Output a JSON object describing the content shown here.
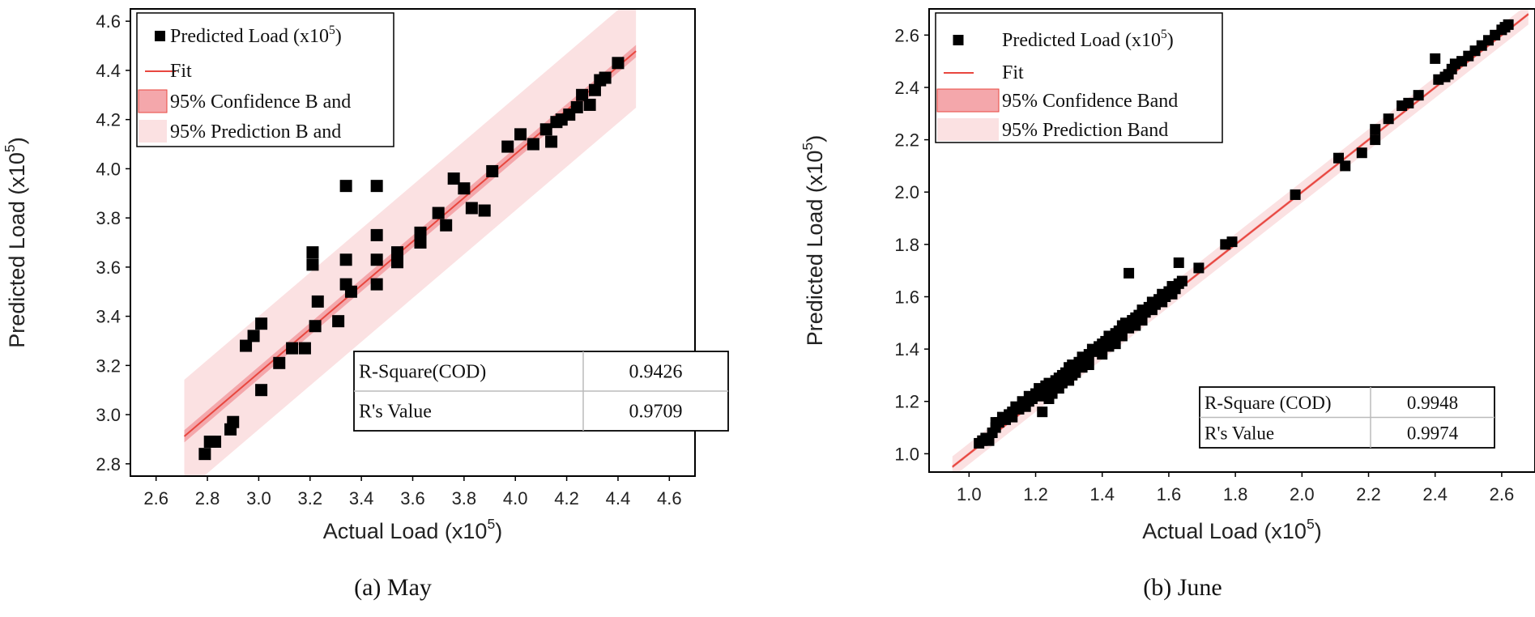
{
  "chart_data": [
    {
      "type": "scatter",
      "caption": "(a) May",
      "xlabel": "Actual Load (x10",
      "ylabel": "Predicted Load (x10",
      "label_exponent": "5",
      "label_close": ")",
      "xlim": [
        2.5,
        4.7
      ],
      "ylim": [
        2.75,
        4.65
      ],
      "xticks": [
        "2.6",
        "2.8",
        "3.0",
        "3.2",
        "3.4",
        "3.6",
        "3.8",
        "4.0",
        "4.2",
        "4.4",
        "4.6"
      ],
      "yticks": [
        "2.8",
        "3.0",
        "3.2",
        "3.4",
        "3.6",
        "3.8",
        "4.0",
        "4.2",
        "4.4",
        "4.6"
      ],
      "fit": {
        "slope": 0.89,
        "intercept": 0.5,
        "x_range": [
          2.71,
          4.47
        ],
        "conf_halfwidth": 0.025,
        "pred_halfwidth": 0.23
      },
      "legend": {
        "scatter": "Predicted Load (x10",
        "scatter_exp": "5",
        "scatter_close": ")",
        "fit": "Fit",
        "confidence": "95% Confidence B and",
        "prediction": "95% Prediction B and"
      },
      "stats": [
        {
          "label": "R-Square(COD)",
          "value": "0.9426"
        },
        {
          "label": "R's Value",
          "value": "0.9709"
        }
      ],
      "points": [
        [
          2.79,
          2.84
        ],
        [
          2.81,
          2.89
        ],
        [
          2.83,
          2.89
        ],
        [
          2.89,
          2.94
        ],
        [
          2.9,
          2.97
        ],
        [
          2.95,
          3.28
        ],
        [
          2.98,
          3.32
        ],
        [
          3.01,
          3.37
        ],
        [
          3.01,
          3.1
        ],
        [
          3.08,
          3.21
        ],
        [
          3.13,
          3.27
        ],
        [
          3.18,
          3.27
        ],
        [
          3.21,
          3.66
        ],
        [
          3.21,
          3.61
        ],
        [
          3.22,
          3.36
        ],
        [
          3.23,
          3.46
        ],
        [
          3.31,
          3.38
        ],
        [
          3.34,
          3.93
        ],
        [
          3.34,
          3.63
        ],
        [
          3.34,
          3.53
        ],
        [
          3.36,
          3.5
        ],
        [
          3.46,
          3.93
        ],
        [
          3.46,
          3.73
        ],
        [
          3.46,
          3.63
        ],
        [
          3.46,
          3.53
        ],
        [
          3.54,
          3.62
        ],
        [
          3.54,
          3.66
        ],
        [
          3.63,
          3.7
        ],
        [
          3.63,
          3.74
        ],
        [
          3.7,
          3.82
        ],
        [
          3.73,
          3.77
        ],
        [
          3.76,
          3.96
        ],
        [
          3.8,
          3.92
        ],
        [
          3.83,
          3.84
        ],
        [
          3.88,
          3.83
        ],
        [
          3.91,
          3.99
        ],
        [
          3.97,
          4.09
        ],
        [
          4.02,
          4.14
        ],
        [
          4.07,
          4.1
        ],
        [
          4.12,
          4.16
        ],
        [
          4.14,
          4.11
        ],
        [
          4.16,
          4.19
        ],
        [
          4.18,
          4.2
        ],
        [
          4.21,
          4.22
        ],
        [
          4.24,
          4.25
        ],
        [
          4.26,
          4.3
        ],
        [
          4.29,
          4.26
        ],
        [
          4.31,
          4.32
        ],
        [
          4.33,
          4.36
        ],
        [
          4.35,
          4.37
        ],
        [
          4.4,
          4.43
        ]
      ]
    },
    {
      "type": "scatter",
      "caption": "(b) June",
      "xlabel": "Actual Load (x10",
      "ylabel": "Predicted Load (x10",
      "label_exponent": "5",
      "label_close": ")",
      "xlim": [
        0.88,
        2.7
      ],
      "ylim": [
        0.93,
        2.7
      ],
      "xticks": [
        "1.0",
        "1.2",
        "1.4",
        "1.6",
        "1.8",
        "2.0",
        "2.2",
        "2.4",
        "2.6"
      ],
      "yticks": [
        "1.0",
        "1.2",
        "1.4",
        "1.6",
        "1.8",
        "2.0",
        "2.2",
        "2.4",
        "2.6"
      ],
      "fit": {
        "slope": 1.0,
        "intercept": 0.0,
        "x_range": [
          0.95,
          2.68
        ],
        "conf_halfwidth": 0.006,
        "pred_halfwidth": 0.04
      },
      "legend": {
        "scatter": "Predicted Load (x10",
        "scatter_exp": "5",
        "scatter_close": ")",
        "fit": "Fit",
        "confidence": "95% Confidence Band",
        "prediction": "95% Prediction Band"
      },
      "stats": [
        {
          "label": "R-Square (COD)",
          "value": "0.9948"
        },
        {
          "label": "R's Value",
          "value": "0.9974"
        }
      ],
      "points": [
        [
          1.03,
          1.04
        ],
        [
          1.04,
          1.05
        ],
        [
          1.05,
          1.06
        ],
        [
          1.06,
          1.05
        ],
        [
          1.07,
          1.08
        ],
        [
          1.08,
          1.1
        ],
        [
          1.08,
          1.12
        ],
        [
          1.09,
          1.12
        ],
        [
          1.1,
          1.14
        ],
        [
          1.11,
          1.13
        ],
        [
          1.12,
          1.15
        ],
        [
          1.13,
          1.14
        ],
        [
          1.13,
          1.16
        ],
        [
          1.14,
          1.18
        ],
        [
          1.15,
          1.17
        ],
        [
          1.16,
          1.2
        ],
        [
          1.17,
          1.18
        ],
        [
          1.18,
          1.2
        ],
        [
          1.18,
          1.22
        ],
        [
          1.19,
          1.21
        ],
        [
          1.2,
          1.23
        ],
        [
          1.21,
          1.22
        ],
        [
          1.21,
          1.25
        ],
        [
          1.22,
          1.16
        ],
        [
          1.22,
          1.24
        ],
        [
          1.23,
          1.26
        ],
        [
          1.24,
          1.21
        ],
        [
          1.24,
          1.27
        ],
        [
          1.25,
          1.26
        ],
        [
          1.25,
          1.23
        ],
        [
          1.26,
          1.28
        ],
        [
          1.27,
          1.25
        ],
        [
          1.27,
          1.29
        ],
        [
          1.28,
          1.3
        ],
        [
          1.28,
          1.27
        ],
        [
          1.29,
          1.31
        ],
        [
          1.3,
          1.28
        ],
        [
          1.3,
          1.33
        ],
        [
          1.31,
          1.3
        ],
        [
          1.31,
          1.34
        ],
        [
          1.32,
          1.33
        ],
        [
          1.32,
          1.31
        ],
        [
          1.33,
          1.35
        ],
        [
          1.34,
          1.33
        ],
        [
          1.34,
          1.37
        ],
        [
          1.35,
          1.36
        ],
        [
          1.36,
          1.38
        ],
        [
          1.36,
          1.34
        ],
        [
          1.37,
          1.4
        ],
        [
          1.38,
          1.39
        ],
        [
          1.39,
          1.41
        ],
        [
          1.4,
          1.42
        ],
        [
          1.4,
          1.38
        ],
        [
          1.41,
          1.43
        ],
        [
          1.42,
          1.41
        ],
        [
          1.42,
          1.45
        ],
        [
          1.43,
          1.44
        ],
        [
          1.44,
          1.46
        ],
        [
          1.44,
          1.42
        ],
        [
          1.45,
          1.47
        ],
        [
          1.46,
          1.45
        ],
        [
          1.46,
          1.49
        ],
        [
          1.47,
          1.5
        ],
        [
          1.48,
          1.69
        ],
        [
          1.48,
          1.48
        ],
        [
          1.49,
          1.51
        ],
        [
          1.5,
          1.52
        ],
        [
          1.5,
          1.49
        ],
        [
          1.51,
          1.53
        ],
        [
          1.52,
          1.51
        ],
        [
          1.52,
          1.55
        ],
        [
          1.53,
          1.54
        ],
        [
          1.54,
          1.56
        ],
        [
          1.55,
          1.55
        ],
        [
          1.55,
          1.58
        ],
        [
          1.56,
          1.57
        ],
        [
          1.57,
          1.59
        ],
        [
          1.58,
          1.58
        ],
        [
          1.58,
          1.61
        ],
        [
          1.59,
          1.6
        ],
        [
          1.6,
          1.62
        ],
        [
          1.61,
          1.61
        ],
        [
          1.61,
          1.64
        ],
        [
          1.62,
          1.63
        ],
        [
          1.63,
          1.73
        ],
        [
          1.63,
          1.65
        ],
        [
          1.64,
          1.66
        ],
        [
          1.69,
          1.71
        ],
        [
          1.77,
          1.8
        ],
        [
          1.79,
          1.81
        ],
        [
          1.98,
          1.99
        ],
        [
          2.11,
          2.13
        ],
        [
          2.13,
          2.1
        ],
        [
          2.18,
          2.15
        ],
        [
          2.22,
          2.24
        ],
        [
          2.22,
          2.2
        ],
        [
          2.26,
          2.28
        ],
        [
          2.3,
          2.33
        ],
        [
          2.32,
          2.34
        ],
        [
          2.35,
          2.37
        ],
        [
          2.4,
          2.51
        ],
        [
          2.41,
          2.43
        ],
        [
          2.43,
          2.44
        ],
        [
          2.44,
          2.45
        ],
        [
          2.45,
          2.47
        ],
        [
          2.46,
          2.49
        ],
        [
          2.48,
          2.5
        ],
        [
          2.5,
          2.52
        ],
        [
          2.52,
          2.54
        ],
        [
          2.54,
          2.56
        ],
        [
          2.56,
          2.58
        ],
        [
          2.58,
          2.6
        ],
        [
          2.6,
          2.62
        ],
        [
          2.61,
          2.63
        ],
        [
          2.62,
          2.64
        ]
      ]
    }
  ]
}
